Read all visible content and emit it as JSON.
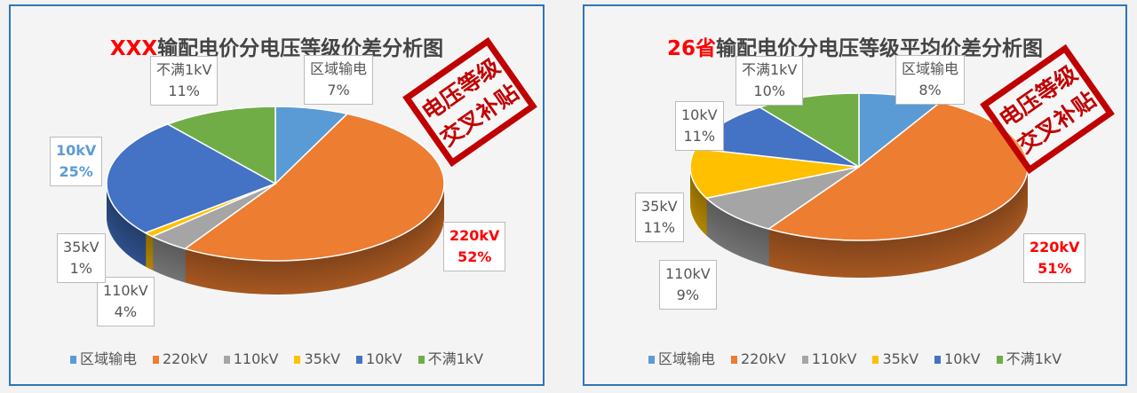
{
  "chart_data": [
    {
      "type": "pie",
      "title_highlight": "XXX",
      "title_rest": "输配电价分电压等级价差分析图",
      "categories": [
        "区域输电",
        "220kV",
        "110kV",
        "35kV",
        "10kV",
        "不满1kV"
      ],
      "values": [
        7,
        52,
        4,
        1,
        25,
        11
      ],
      "labels": [
        "7%",
        "52%",
        "4%",
        "1%",
        "25%",
        "11%"
      ],
      "colors": [
        "#5b9bd5",
        "#ed7d31",
        "#a5a5a5",
        "#ffc000",
        "#4472c4",
        "#70ad47"
      ],
      "legend": "bottom",
      "stamp": [
        "电压等级",
        "交叉补贴"
      ]
    },
    {
      "type": "pie",
      "title_highlight": "26省",
      "title_rest": "输配电价分电压等级平均价差分析图",
      "categories": [
        "区域输电",
        "220kV",
        "110kV",
        "35kV",
        "10kV",
        "不满1kV"
      ],
      "values": [
        8,
        51,
        9,
        11,
        11,
        10
      ],
      "labels": [
        "8%",
        "51%",
        "9%",
        "11%",
        "11%",
        "10%"
      ],
      "colors": [
        "#5b9bd5",
        "#ed7d31",
        "#a5a5a5",
        "#ffc000",
        "#4472c4",
        "#70ad47"
      ],
      "legend": "bottom",
      "stamp": [
        "电压等级",
        "交叉补贴"
      ]
    }
  ]
}
